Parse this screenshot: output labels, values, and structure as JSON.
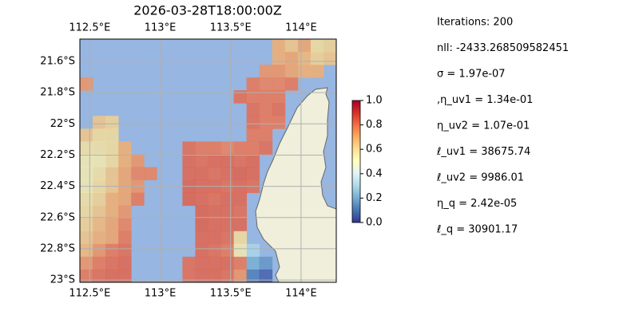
{
  "chart_data": {
    "type": "heatmap-map",
    "title": "2026-03-28T18:00:00Z",
    "xlim": [
      112.43,
      114.25
    ],
    "ylim": [
      -23.015,
      -21.457
    ],
    "xticks": [
      {
        "value": 112.5,
        "label": "112.5°E"
      },
      {
        "value": 113,
        "label": "113°E"
      },
      {
        "value": 113.5,
        "label": "113.5°E"
      },
      {
        "value": 114,
        "label": "114°E"
      }
    ],
    "yticks": [
      {
        "value": -21.6,
        "label": "21.6°S"
      },
      {
        "value": -21.8,
        "label": "21.8°S"
      },
      {
        "value": -22,
        "label": "22°S"
      },
      {
        "value": -22.2,
        "label": "22.2°S"
      },
      {
        "value": -22.4,
        "label": "22.4°S"
      },
      {
        "value": -22.6,
        "label": "22.6°S"
      },
      {
        "value": -22.8,
        "label": "22.8°S"
      },
      {
        "value": -23,
        "label": "23°S"
      }
    ],
    "clim": [
      0,
      1
    ],
    "cticks": [
      {
        "value": 0,
        "label": "0.0"
      },
      {
        "value": 0.2,
        "label": "0.2"
      },
      {
        "value": 0.4,
        "label": "0.4"
      },
      {
        "value": 0.6,
        "label": "0.6"
      },
      {
        "value": 0.8,
        "label": "0.8"
      },
      {
        "value": 1,
        "label": "1.0"
      }
    ],
    "grid": true,
    "field": [
      [
        null,
        null,
        null,
        null,
        null,
        null,
        null,
        null,
        null,
        null,
        null,
        null,
        null,
        null,
        null,
        0.7,
        0.65,
        0.72,
        0.6,
        0.62
      ],
      [
        null,
        null,
        null,
        null,
        null,
        null,
        null,
        null,
        null,
        null,
        null,
        null,
        null,
        null,
        null,
        0.7,
        0.72,
        0.68,
        0.62,
        0.65
      ],
      [
        null,
        null,
        null,
        null,
        null,
        null,
        null,
        null,
        null,
        null,
        null,
        null,
        null,
        null,
        0.75,
        0.75,
        0.72,
        0.7,
        0.7,
        null
      ],
      [
        0.75,
        null,
        null,
        null,
        null,
        null,
        null,
        null,
        null,
        null,
        null,
        null,
        null,
        0.8,
        0.78,
        0.78,
        0.8,
        null,
        null,
        null
      ],
      [
        null,
        null,
        null,
        null,
        null,
        null,
        null,
        null,
        null,
        null,
        null,
        null,
        0.82,
        0.8,
        0.8,
        0.8,
        null,
        null,
        null,
        null
      ],
      [
        null,
        null,
        null,
        null,
        null,
        null,
        null,
        null,
        null,
        null,
        null,
        null,
        null,
        0.82,
        0.8,
        0.82,
        null,
        null,
        null,
        null
      ],
      [
        null,
        0.65,
        0.62,
        null,
        null,
        null,
        null,
        null,
        null,
        null,
        null,
        null,
        null,
        0.82,
        0.8,
        0.8,
        null,
        null,
        null,
        null
      ],
      [
        0.65,
        0.6,
        0.6,
        null,
        null,
        null,
        null,
        null,
        null,
        null,
        null,
        null,
        null,
        0.8,
        0.8,
        null,
        null,
        null,
        null,
        null
      ],
      [
        0.58,
        0.58,
        0.6,
        0.7,
        null,
        null,
        null,
        null,
        0.82,
        0.8,
        0.8,
        0.78,
        0.8,
        0.8,
        0.82,
        null,
        null,
        null,
        null,
        null
      ],
      [
        0.55,
        0.55,
        0.6,
        0.7,
        0.75,
        null,
        null,
        null,
        0.83,
        0.82,
        0.83,
        0.83,
        0.82,
        0.83,
        null,
        null,
        null,
        null,
        null,
        null
      ],
      [
        0.55,
        0.58,
        0.65,
        0.72,
        0.78,
        0.78,
        null,
        null,
        0.83,
        0.83,
        0.82,
        0.83,
        0.84,
        0.83,
        null,
        null,
        null,
        null,
        null,
        null
      ],
      [
        0.55,
        0.6,
        0.65,
        0.72,
        0.75,
        null,
        null,
        null,
        0.84,
        0.83,
        0.83,
        0.82,
        0.83,
        0.82,
        null,
        null,
        null,
        null,
        null,
        null
      ],
      [
        0.58,
        0.62,
        0.7,
        0.72,
        0.8,
        null,
        null,
        null,
        0.84,
        0.83,
        0.82,
        0.83,
        0.83,
        null,
        null,
        null,
        null,
        null,
        null,
        null
      ],
      [
        0.6,
        0.65,
        0.7,
        0.75,
        null,
        null,
        null,
        null,
        null,
        0.84,
        0.83,
        0.83,
        0.82,
        null,
        null,
        null,
        null,
        null,
        null,
        null
      ],
      [
        0.62,
        0.68,
        0.72,
        0.78,
        null,
        null,
        null,
        null,
        null,
        0.84,
        0.83,
        0.83,
        0.83,
        null,
        null,
        null,
        null,
        null,
        null,
        null
      ],
      [
        0.65,
        0.7,
        0.72,
        0.8,
        null,
        null,
        null,
        null,
        null,
        0.83,
        0.83,
        0.82,
        0.6,
        null,
        null,
        null,
        null,
        null,
        null,
        null
      ],
      [
        0.68,
        0.75,
        0.8,
        0.82,
        null,
        null,
        null,
        null,
        null,
        0.83,
        0.82,
        0.8,
        0.55,
        0.3,
        null,
        null,
        null,
        null,
        null,
        null
      ],
      [
        0.75,
        0.8,
        0.82,
        0.83,
        null,
        null,
        null,
        null,
        0.82,
        0.83,
        0.83,
        0.83,
        0.8,
        0.2,
        0.15,
        null,
        null,
        null,
        null,
        null
      ],
      [
        0.8,
        0.82,
        0.83,
        0.83,
        null,
        null,
        null,
        null,
        0.82,
        0.83,
        0.83,
        0.82,
        0.75,
        0.1,
        0.05,
        null,
        null,
        null,
        null,
        null
      ]
    ],
    "annotations": [
      "Iterations: 200",
      "nll: -2433.268509582451",
      "σ = 1.97e-07",
      ",η_uv1 = 1.34e-01",
      "η_uv2 = 1.07e-01",
      "ℓ_uv1 = 38675.74",
      "ℓ_uv2 = 9986.01",
      "η_q = 2.42e-05",
      "ℓ_q = 30901.17"
    ]
  }
}
